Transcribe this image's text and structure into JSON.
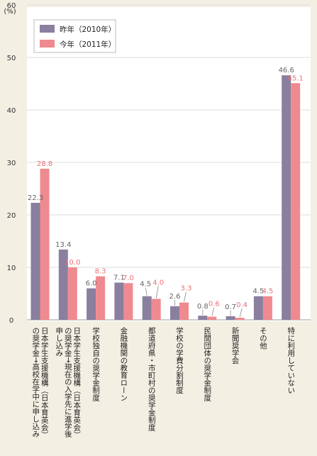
{
  "chart_data": {
    "type": "bar",
    "y_unit": "(%)",
    "ylim": [
      0,
      60
    ],
    "yticks": [
      0,
      10,
      20,
      30,
      40,
      50,
      60
    ],
    "grid": true,
    "legend_position": "top-left",
    "categories": [
      [
        "日本学生支援機構（日本育英会）",
        "の奨学金→高校在学中に申し込み"
      ],
      [
        "日本学生支援機構（日本育英会）",
        "の奨学金→現在の入学先に進学後",
        "申し込み"
      ],
      [
        "学校独自の奨学金制度"
      ],
      [
        "金融機関の教育ローン"
      ],
      [
        "都道府県・市町村の奨学金制度"
      ],
      [
        "学校の学費分割制度"
      ],
      [
        "民間団体の奨学金制度"
      ],
      [
        "新聞奨学会"
      ],
      [
        "その他"
      ],
      [
        "特に利用していない"
      ]
    ],
    "series": [
      {
        "name": "昨年（2010年）",
        "color": "#8a7f9e",
        "labelColor": "#666666",
        "values": [
          22.3,
          13.4,
          6.0,
          7.1,
          4.5,
          2.6,
          0.8,
          0.7,
          4.5,
          46.6
        ]
      },
      {
        "name": "今年（2011年）",
        "color": "#ef8a90",
        "labelColor": "#e8707a",
        "values": [
          28.8,
          10.0,
          8.3,
          7.0,
          4.0,
          3.3,
          0.6,
          0.4,
          4.5,
          45.1
        ]
      }
    ]
  }
}
